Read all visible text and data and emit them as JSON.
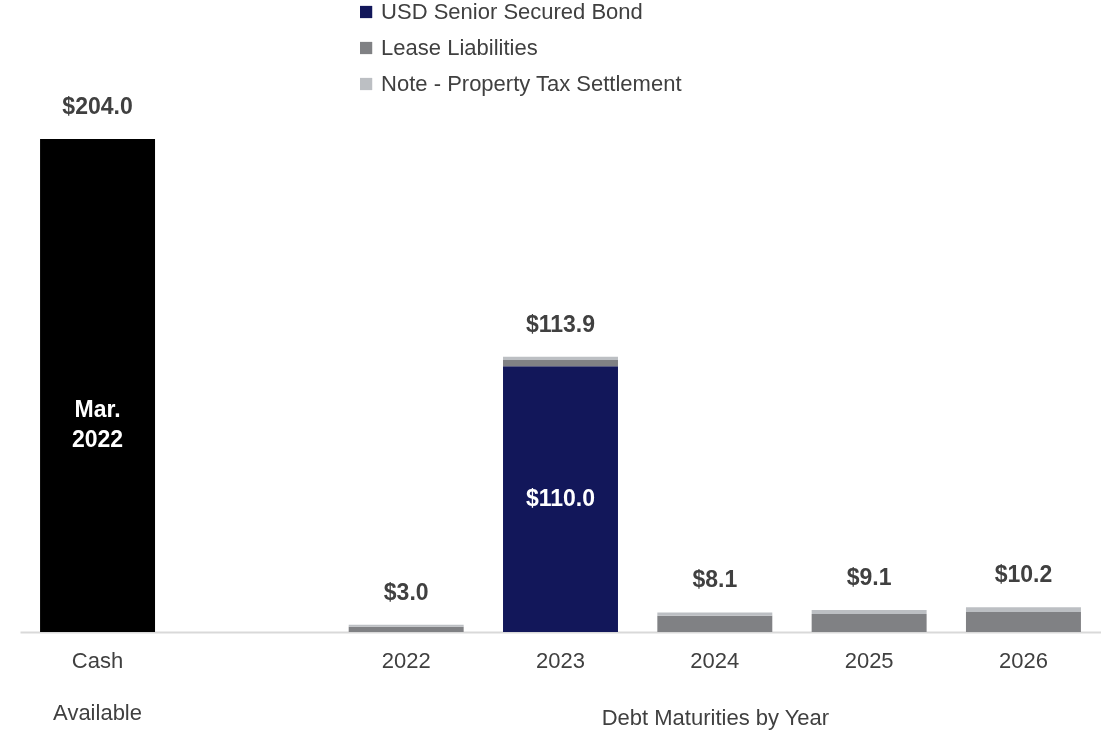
{
  "chart_data": {
    "type": "bar",
    "stacked": true,
    "categories": [
      "Cash Available",
      null,
      "2022",
      "2023",
      "2024",
      "2025",
      "2026"
    ],
    "xlabel": "Debt Maturities by Year",
    "series": [
      {
        "color": "#000000",
        "values": [
          204.0,
          null,
          null,
          null,
          null,
          null,
          null
        ]
      },
      {
        "name": "USD Senior Secured Bond",
        "color": "#12175a",
        "values": [
          null,
          null,
          null,
          110.0,
          null,
          null,
          null
        ],
        "value_labels": [
          null,
          null,
          null,
          "$110.0",
          null,
          null,
          null
        ]
      },
      {
        "name": "Lease Liabilities",
        "color": "#808184",
        "values": [
          null,
          null,
          2.2,
          2.6,
          6.7,
          7.4,
          8.3
        ]
      },
      {
        "name": "Note - Property Tax Settlement",
        "color": "#bcbfc3",
        "values": [
          null,
          null,
          0.8,
          1.3,
          1.4,
          1.7,
          1.9
        ]
      }
    ],
    "totals": [
      "$204.0",
      null,
      "$3.0",
      "$113.9",
      "$8.1",
      "$9.1",
      "$10.2"
    ],
    "annotations": [
      "Mar. 2022"
    ],
    "legend": "top",
    "grid": false
  }
}
